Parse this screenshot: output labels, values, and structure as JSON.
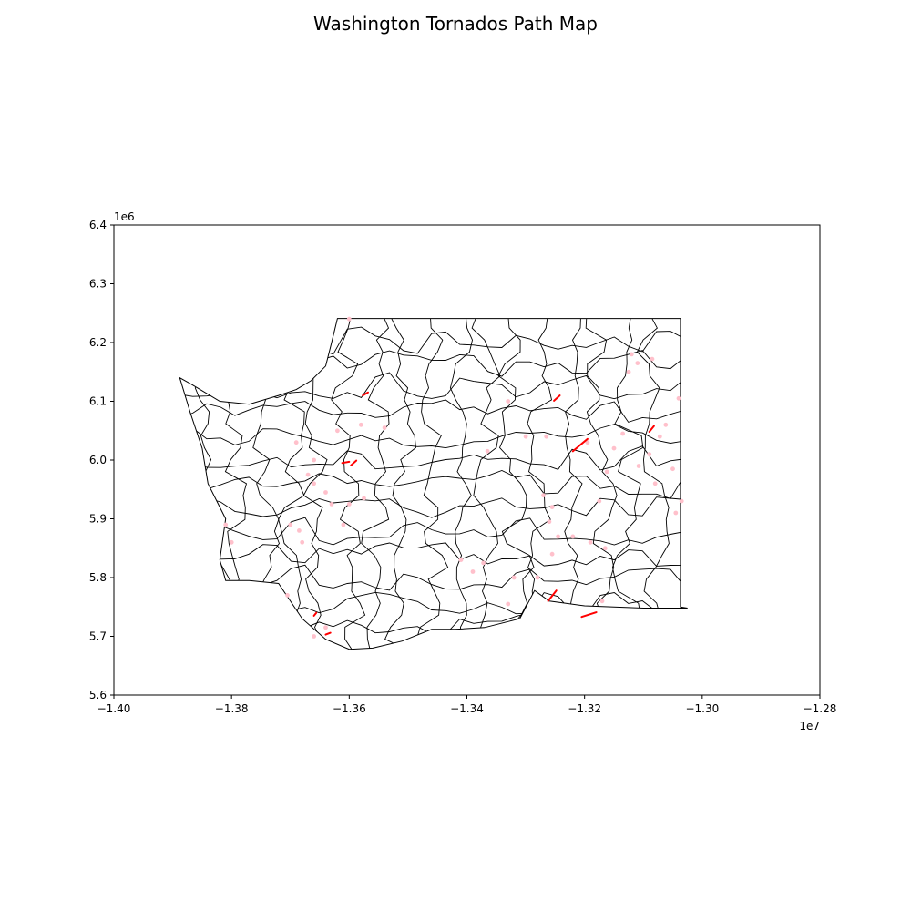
{
  "title": "Washington Tornados Path Map",
  "axes": {
    "x_multiplier_label": "1e7",
    "y_multiplier_label": "1e6"
  },
  "chart_data": {
    "type": "map",
    "title": "Washington Tornados Path Map",
    "xlabel": "",
    "ylabel": "",
    "xlim": [
      -14000000,
      -12800000
    ],
    "ylim": [
      5600000,
      6400000
    ],
    "x_ticks": [
      -14000000,
      -13800000,
      -13600000,
      -13400000,
      -13200000,
      -13000000,
      -12800000
    ],
    "x_tick_labels": [
      "−1.40",
      "−1.38",
      "−1.36",
      "−1.34",
      "−1.32",
      "−1.30",
      "−1.28"
    ],
    "y_ticks": [
      5600000,
      5700000,
      5800000,
      5900000,
      6000000,
      6100000,
      6200000,
      6300000,
      6400000
    ],
    "y_tick_labels": [
      "5.6",
      "5.7",
      "5.8",
      "5.9",
      "6.0",
      "6.1",
      "6.2",
      "6.3",
      "6.4"
    ],
    "grid": false,
    "boundary_color": "#000000",
    "path_color": "#ff0000",
    "point_color": "#ffc0cb",
    "state_outline": [
      [
        -13620000,
        6241000
      ],
      [
        -13400000,
        6241000
      ],
      [
        -13200000,
        6241000
      ],
      [
        -13037000,
        6241000
      ],
      [
        -13037000,
        6100000
      ],
      [
        -13037000,
        5950000
      ],
      [
        -13037000,
        5750000
      ],
      [
        -13025000,
        5748000
      ],
      [
        -13100000,
        5748000
      ],
      [
        -13200000,
        5752000
      ],
      [
        -13260000,
        5760000
      ],
      [
        -13285000,
        5778000
      ],
      [
        -13310000,
        5730000
      ],
      [
        -13370000,
        5715000
      ],
      [
        -13420000,
        5712000
      ],
      [
        -13460000,
        5712000
      ],
      [
        -13510000,
        5692000
      ],
      [
        -13560000,
        5680000
      ],
      [
        -13600000,
        5678000
      ],
      [
        -13640000,
        5695000
      ],
      [
        -13680000,
        5730000
      ],
      [
        -13720000,
        5790000
      ],
      [
        -13770000,
        5795000
      ],
      [
        -13810000,
        5795000
      ],
      [
        -13820000,
        5830000
      ],
      [
        -13810000,
        5900000
      ],
      [
        -13840000,
        5960000
      ],
      [
        -13850000,
        6020000
      ],
      [
        -13870000,
        6080000
      ],
      [
        -13888000,
        6140000
      ],
      [
        -13870000,
        6130000
      ],
      [
        -13820000,
        6100000
      ],
      [
        -13770000,
        6095000
      ],
      [
        -13720000,
        6110000
      ],
      [
        -13690000,
        6120000
      ],
      [
        -13665000,
        6135000
      ],
      [
        -13640000,
        6160000
      ],
      [
        -13630000,
        6200000
      ],
      [
        -13620000,
        6241000
      ]
    ],
    "tornado_paths": [
      [
        [
          -13252000,
          6101000
        ],
        [
          -13242000,
          6110000
        ]
      ],
      [
        [
          -13220000,
          6015000
        ],
        [
          -13195000,
          6036000
        ]
      ],
      [
        [
          -13090000,
          6048000
        ],
        [
          -13082000,
          6058000
        ]
      ],
      [
        [
          -13262000,
          5760000
        ],
        [
          -13248000,
          5778000
        ]
      ],
      [
        [
          -13205000,
          5733000
        ],
        [
          -13180000,
          5741000
        ]
      ],
      [
        [
          -13612000,
          5995000
        ],
        [
          -13600000,
          5997000
        ]
      ],
      [
        [
          -13597000,
          5991000
        ],
        [
          -13588000,
          5999000
        ]
      ],
      [
        [
          -13577000,
          6110000
        ],
        [
          -13568000,
          6115000
        ]
      ],
      [
        [
          -13640000,
          5703000
        ],
        [
          -13632000,
          5706000
        ]
      ],
      [
        [
          -13660000,
          5735000
        ],
        [
          -13656000,
          5740000
        ]
      ]
    ],
    "tornado_points": [
      [
        -13600000,
        6240000
      ],
      [
        -13620000,
        6050000
      ],
      [
        -13580000,
        6060000
      ],
      [
        -13540000,
        6055000
      ],
      [
        -13330000,
        6100000
      ],
      [
        -13300000,
        6040000
      ],
      [
        -13265000,
        6040000
      ],
      [
        -13365000,
        6015000
      ],
      [
        -13195000,
        6030000
      ],
      [
        -13150000,
        6020000
      ],
      [
        -13135000,
        6045000
      ],
      [
        -13125000,
        6150000
      ],
      [
        -13120000,
        6180000
      ],
      [
        -13110000,
        6165000
      ],
      [
        -13085000,
        6172000
      ],
      [
        -13040000,
        6105000
      ],
      [
        -13062000,
        6060000
      ],
      [
        -13072000,
        6040000
      ],
      [
        -13090000,
        6010000
      ],
      [
        -13108000,
        5990000
      ],
      [
        -13162000,
        5980000
      ],
      [
        -13080000,
        5960000
      ],
      [
        -13050000,
        5985000
      ],
      [
        -13270000,
        5940000
      ],
      [
        -13255000,
        5920000
      ],
      [
        -13260000,
        5895000
      ],
      [
        -13245000,
        5870000
      ],
      [
        -13175000,
        5930000
      ],
      [
        -13165000,
        5850000
      ],
      [
        -13035000,
        5930000
      ],
      [
        -13045000,
        5910000
      ],
      [
        -13320000,
        5800000
      ],
      [
        -13330000,
        5755000
      ],
      [
        -13280000,
        5800000
      ],
      [
        -13255000,
        5840000
      ],
      [
        -13372000,
        5825000
      ],
      [
        -13390000,
        5810000
      ],
      [
        -13410000,
        5830000
      ],
      [
        -13575000,
        5935000
      ],
      [
        -13600000,
        5925000
      ],
      [
        -13630000,
        5925000
      ],
      [
        -13640000,
        5945000
      ],
      [
        -13660000,
        5960000
      ],
      [
        -13670000,
        5975000
      ],
      [
        -13685000,
        5880000
      ],
      [
        -13700000,
        5890000
      ],
      [
        -13680000,
        5860000
      ],
      [
        -13705000,
        5770000
      ],
      [
        -13640000,
        5715000
      ],
      [
        -13660000,
        5700000
      ],
      [
        -13610000,
        5890000
      ],
      [
        -13800000,
        5860000
      ],
      [
        -13810000,
        5890000
      ],
      [
        -13660000,
        6000000
      ],
      [
        -13690000,
        6030000
      ],
      [
        -13170000,
        5760000
      ],
      [
        -13220000,
        5870000
      ],
      [
        -13190000,
        5860000
      ]
    ]
  }
}
